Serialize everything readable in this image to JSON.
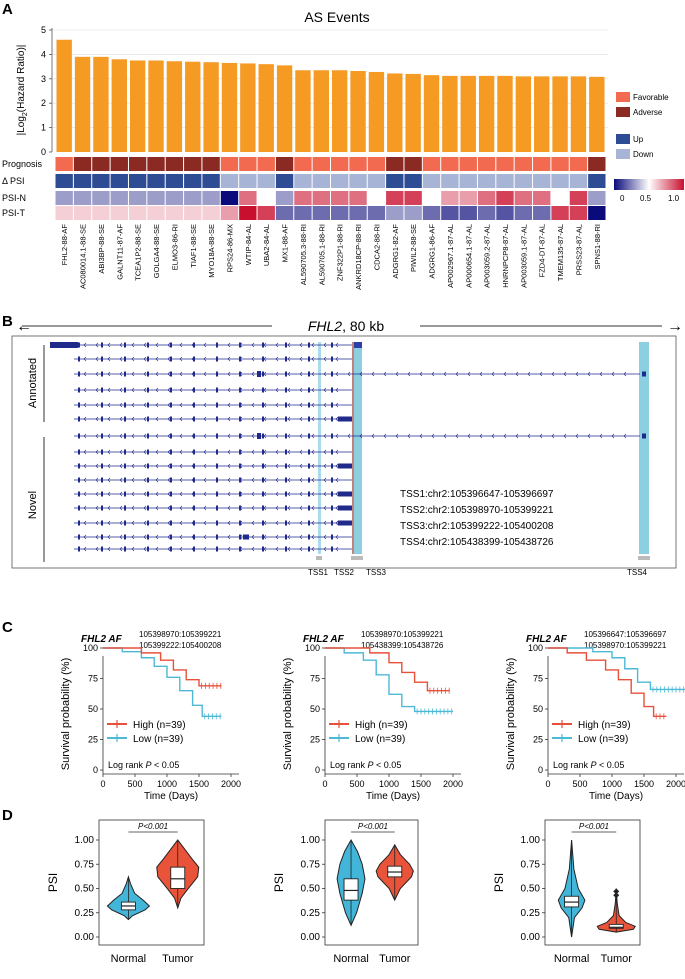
{
  "panels": {
    "A": "A",
    "B": "B",
    "C": "C",
    "D": "D"
  },
  "panelA": {
    "title": "AS Events",
    "ylabel_pre": "|Log",
    "ylabel_sub": "2",
    "ylabel_post": "(Hazard Ratio)|",
    "yticks": [
      "0",
      "1",
      "2",
      "3",
      "4",
      "5"
    ],
    "row_labels": [
      "Prognosis",
      "Δ PSI",
      "PSI-N",
      "PSI-T"
    ],
    "legend": {
      "prognosis": [
        {
          "label": "Favorable",
          "color": "#F26A4F"
        },
        {
          "label": "Adverse",
          "color": "#8B2A22"
        }
      ],
      "delta": [
        {
          "label": "Up",
          "color": "#2E4C94"
        },
        {
          "label": "Down",
          "color": "#A8B4D6"
        }
      ],
      "scale_ticks": [
        "0",
        "0.5",
        "1.0"
      ]
    },
    "colors": {
      "bar": "#F59A23",
      "favorable": "#F26A4F",
      "adverse": "#8B2A22",
      "up": "#2E4C94",
      "down": "#A8B4D6"
    }
  },
  "chart_data": {
    "type": "bar",
    "title": "AS Events",
    "ylabel": "|Log2(Hazard Ratio)|",
    "ylim": [
      0,
      5
    ],
    "categories": [
      "FHL2-88-AF",
      "AC080014.1-88-SE",
      "ABI3BP-88-SE",
      "GALNT11-87-AF",
      "TCEA1P2-88-SE",
      "GOLGA4-88-SE",
      "ELMO3-86-RI",
      "TIAF1-88-SE",
      "MYO18A-88-SE",
      "RPS24-86-MX",
      "WTIP-84-AL",
      "UBA2-84-AL",
      "MX1-88-AF",
      "AL590705.3-88-RI",
      "AL590705.1-88-RI",
      "ZNF322P1-88-RI",
      "ANKRD18CP-88-RI",
      "CDCA2-88-RI",
      "ADGRG1-82-AF",
      "PIWIL2-88-SE",
      "ADGRG1-86-AF",
      "AP002967.1-87-AL",
      "AP000654.1-87-AL",
      "AP003059.2-87-AL",
      "HNRNPCP8-87-AL",
      "AP003059.1-87-AL",
      "FZD4-DT-87-AL",
      "TMEM135-87-AL",
      "PRSS23-87-AL",
      "SPNS1-88-RI"
    ],
    "values": [
      4.6,
      3.9,
      3.9,
      3.8,
      3.75,
      3.75,
      3.72,
      3.7,
      3.68,
      3.65,
      3.63,
      3.6,
      3.55,
      3.35,
      3.35,
      3.35,
      3.32,
      3.28,
      3.22,
      3.2,
      3.15,
      3.12,
      3.12,
      3.12,
      3.12,
      3.1,
      3.1,
      3.1,
      3.1,
      3.08
    ],
    "prognosis": [
      "F",
      "A",
      "A",
      "A",
      "A",
      "A",
      "A",
      "A",
      "A",
      "F",
      "F",
      "F",
      "A",
      "F",
      "F",
      "F",
      "F",
      "F",
      "A",
      "A",
      "F",
      "F",
      "F",
      "F",
      "F",
      "F",
      "F",
      "F",
      "F",
      "A"
    ],
    "delta_psi": [
      "U",
      "U",
      "U",
      "U",
      "U",
      "U",
      "U",
      "U",
      "U",
      "D",
      "D",
      "D",
      "U",
      "D",
      "D",
      "D",
      "D",
      "D",
      "U",
      "U",
      "D",
      "D",
      "D",
      "D",
      "D",
      "D",
      "D",
      "D",
      "D",
      "U"
    ],
    "psi_n": [
      0.3,
      0.3,
      0.3,
      0.3,
      0.3,
      0.3,
      0.3,
      0.3,
      0.3,
      0.0,
      0.8,
      0.5,
      0.3,
      0.8,
      0.8,
      0.8,
      0.8,
      0.5,
      0.9,
      0.9,
      0.5,
      0.7,
      0.7,
      0.8,
      0.9,
      0.8,
      0.8,
      0.5,
      0.9,
      0.3
    ],
    "psi_t": [
      0.6,
      0.6,
      0.6,
      0.6,
      0.6,
      0.6,
      0.6,
      0.6,
      0.6,
      0.7,
      1.0,
      0.9,
      0.2,
      0.2,
      0.2,
      0.2,
      0.2,
      0.2,
      0.3,
      0.3,
      0.2,
      0.15,
      0.15,
      0.2,
      0.15,
      0.2,
      0.2,
      0.9,
      0.9,
      0.0
    ]
  },
  "panelB": {
    "gene": "FHL2",
    "length": ", 80 kb",
    "group_labels": [
      "Annotated",
      "Novel"
    ],
    "tss_coords": [
      "TSS1:chr2:105396647-105396697",
      "TSS2:chr2:105398970-105399221",
      "TSS3:chr2:105399222-105400208",
      "TSS4:chr2:105438399-105438726"
    ],
    "tss_labels": [
      "TSS1",
      "TSS2",
      "TSS3",
      "TSS4"
    ]
  },
  "panelC": {
    "ylabel": "Survival probability (%)",
    "xlabel": "Time (Days)",
    "xticks": [
      "0",
      "500",
      "1000",
      "1500",
      "2000"
    ],
    "yticks": [
      "0",
      "25",
      "50",
      "75",
      "100"
    ],
    "logrank_pre": "Log rank ",
    "logrank_post": " < 0.05",
    "logrank_p": "P",
    "legend": [
      "High (n=39)",
      "Low (n=39)"
    ],
    "plots": [
      {
        "gene": "FHL2 AF",
        "coord1": "105398970:105399221",
        "coord2": "105399222:105400208"
      },
      {
        "gene": "FHL2 AF",
        "coord1": "105398970:105399221",
        "coord2": "105438399:105438726"
      },
      {
        "gene": "FHL2 AF",
        "coord1": "105396647:105396697",
        "coord2": "105398970:105399221"
      }
    ],
    "colors": {
      "high": "#E8503A",
      "low": "#4DB9D6"
    }
  },
  "panelD": {
    "ylabel": "PSI",
    "yticks": [
      "0.00",
      "0.25",
      "0.50",
      "0.75",
      "1.00"
    ],
    "pval": "P<0.001",
    "groups": [
      "Normal",
      "Tumor"
    ],
    "colors": {
      "normal": "#42B5D9",
      "tumor": "#E9533A"
    }
  }
}
